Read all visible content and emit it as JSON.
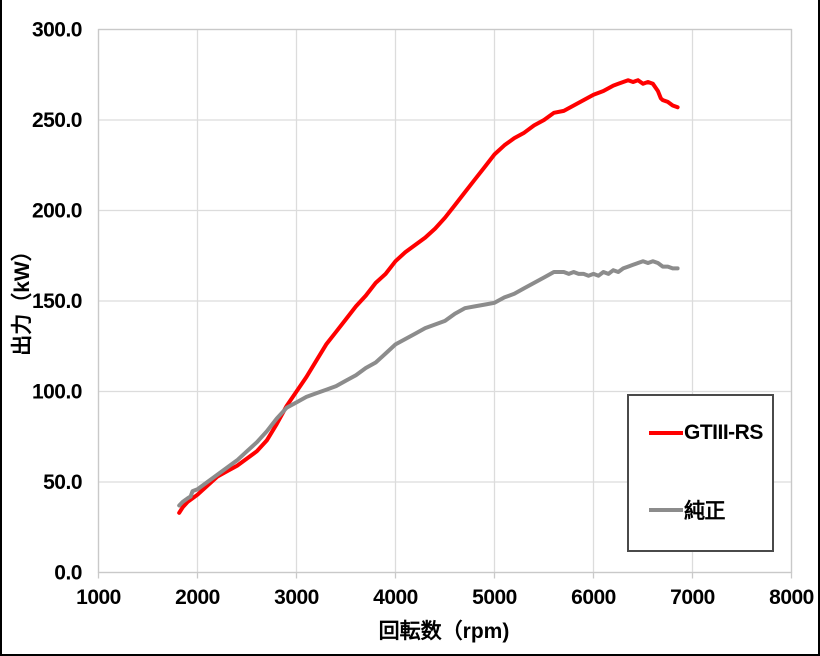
{
  "colors": {
    "background": "#FFFFFF",
    "frame_border": "#000000",
    "grid": "#DCDCDC",
    "plot_border": "#C9C9C9",
    "axis_text": "#000000",
    "legend_border": "#4A4A4A",
    "series_red": "#FF0000",
    "series_gray": "#8C8C8C"
  },
  "chart_data": {
    "type": "line",
    "title": "",
    "xlabel": "回転数（rpm)",
    "ylabel": "出力（kW）",
    "xlim": [
      1000,
      8000
    ],
    "ylim": [
      0,
      300
    ],
    "grid": true,
    "legend_position": "inside-right",
    "x_tick_values": [
      1000,
      2000,
      3000,
      4000,
      5000,
      6000,
      7000,
      8000
    ],
    "x_tick_labels": [
      "1000",
      "2000",
      "3000",
      "4000",
      "5000",
      "6000",
      "7000",
      "8000"
    ],
    "y_tick_values": [
      0,
      50,
      100,
      150,
      200,
      250,
      300
    ],
    "y_tick_labels": [
      "0.0",
      "50.0",
      "100.0",
      "150.0",
      "200.0",
      "250.0",
      "300.0"
    ],
    "series": [
      {
        "name": "GTIII-RS",
        "color": "#FF0000",
        "points": [
          [
            1815,
            33
          ],
          [
            1850,
            36
          ],
          [
            1900,
            39
          ],
          [
            1950,
            41
          ],
          [
            2000,
            43
          ],
          [
            2100,
            48
          ],
          [
            2200,
            53
          ],
          [
            2300,
            56
          ],
          [
            2400,
            59
          ],
          [
            2500,
            63
          ],
          [
            2600,
            67
          ],
          [
            2700,
            73
          ],
          [
            2800,
            82
          ],
          [
            2900,
            92
          ],
          [
            3000,
            100
          ],
          [
            3100,
            108
          ],
          [
            3200,
            117
          ],
          [
            3300,
            126
          ],
          [
            3400,
            133
          ],
          [
            3500,
            140
          ],
          [
            3600,
            147
          ],
          [
            3700,
            153
          ],
          [
            3800,
            160
          ],
          [
            3900,
            165
          ],
          [
            4000,
            172
          ],
          [
            4100,
            177
          ],
          [
            4200,
            181
          ],
          [
            4300,
            185
          ],
          [
            4400,
            190
          ],
          [
            4500,
            196
          ],
          [
            4600,
            203
          ],
          [
            4700,
            210
          ],
          [
            4800,
            217
          ],
          [
            4900,
            224
          ],
          [
            5000,
            231
          ],
          [
            5100,
            236
          ],
          [
            5200,
            240
          ],
          [
            5300,
            243
          ],
          [
            5400,
            247
          ],
          [
            5500,
            250
          ],
          [
            5550,
            252
          ],
          [
            5600,
            254
          ],
          [
            5700,
            255
          ],
          [
            5800,
            258
          ],
          [
            5900,
            261
          ],
          [
            6000,
            264
          ],
          [
            6100,
            266
          ],
          [
            6200,
            269
          ],
          [
            6250,
            270
          ],
          [
            6300,
            271
          ],
          [
            6350,
            272
          ],
          [
            6400,
            271
          ],
          [
            6450,
            272
          ],
          [
            6500,
            270
          ],
          [
            6550,
            271
          ],
          [
            6600,
            270
          ],
          [
            6650,
            266
          ],
          [
            6680,
            262
          ],
          [
            6700,
            261
          ],
          [
            6750,
            260
          ],
          [
            6800,
            258
          ],
          [
            6850,
            257
          ]
        ]
      },
      {
        "name": "純正",
        "color": "#8C8C8C",
        "points": [
          [
            1815,
            37
          ],
          [
            1850,
            39
          ],
          [
            1900,
            41
          ],
          [
            1930,
            42
          ],
          [
            1950,
            45
          ],
          [
            2000,
            46
          ],
          [
            2100,
            50
          ],
          [
            2200,
            54
          ],
          [
            2300,
            58
          ],
          [
            2400,
            62
          ],
          [
            2500,
            67
          ],
          [
            2600,
            72
          ],
          [
            2700,
            78
          ],
          [
            2800,
            85
          ],
          [
            2900,
            91
          ],
          [
            3000,
            94
          ],
          [
            3100,
            97
          ],
          [
            3200,
            99
          ],
          [
            3300,
            101
          ],
          [
            3400,
            103
          ],
          [
            3500,
            106
          ],
          [
            3600,
            109
          ],
          [
            3700,
            113
          ],
          [
            3800,
            116
          ],
          [
            3900,
            121
          ],
          [
            4000,
            126
          ],
          [
            4100,
            129
          ],
          [
            4200,
            132
          ],
          [
            4300,
            135
          ],
          [
            4400,
            137
          ],
          [
            4500,
            139
          ],
          [
            4600,
            143
          ],
          [
            4700,
            146
          ],
          [
            4800,
            147
          ],
          [
            4900,
            148
          ],
          [
            5000,
            149
          ],
          [
            5100,
            152
          ],
          [
            5200,
            154
          ],
          [
            5300,
            157
          ],
          [
            5400,
            160
          ],
          [
            5500,
            163
          ],
          [
            5600,
            166
          ],
          [
            5650,
            166
          ],
          [
            5700,
            166
          ],
          [
            5750,
            165
          ],
          [
            5800,
            166
          ],
          [
            5850,
            165
          ],
          [
            5900,
            165
          ],
          [
            5950,
            164
          ],
          [
            6000,
            165
          ],
          [
            6050,
            164
          ],
          [
            6100,
            166
          ],
          [
            6150,
            165
          ],
          [
            6200,
            167
          ],
          [
            6250,
            166
          ],
          [
            6300,
            168
          ],
          [
            6350,
            169
          ],
          [
            6400,
            170
          ],
          [
            6450,
            171
          ],
          [
            6500,
            172
          ],
          [
            6550,
            171
          ],
          [
            6600,
            172
          ],
          [
            6650,
            171
          ],
          [
            6700,
            169
          ],
          [
            6750,
            169
          ],
          [
            6800,
            168
          ],
          [
            6850,
            168
          ]
        ]
      }
    ]
  },
  "legend": {
    "items": [
      {
        "label": "GTIII-RS",
        "color": "#FF0000"
      },
      {
        "label": "純正",
        "color": "#8C8C8C"
      }
    ]
  }
}
